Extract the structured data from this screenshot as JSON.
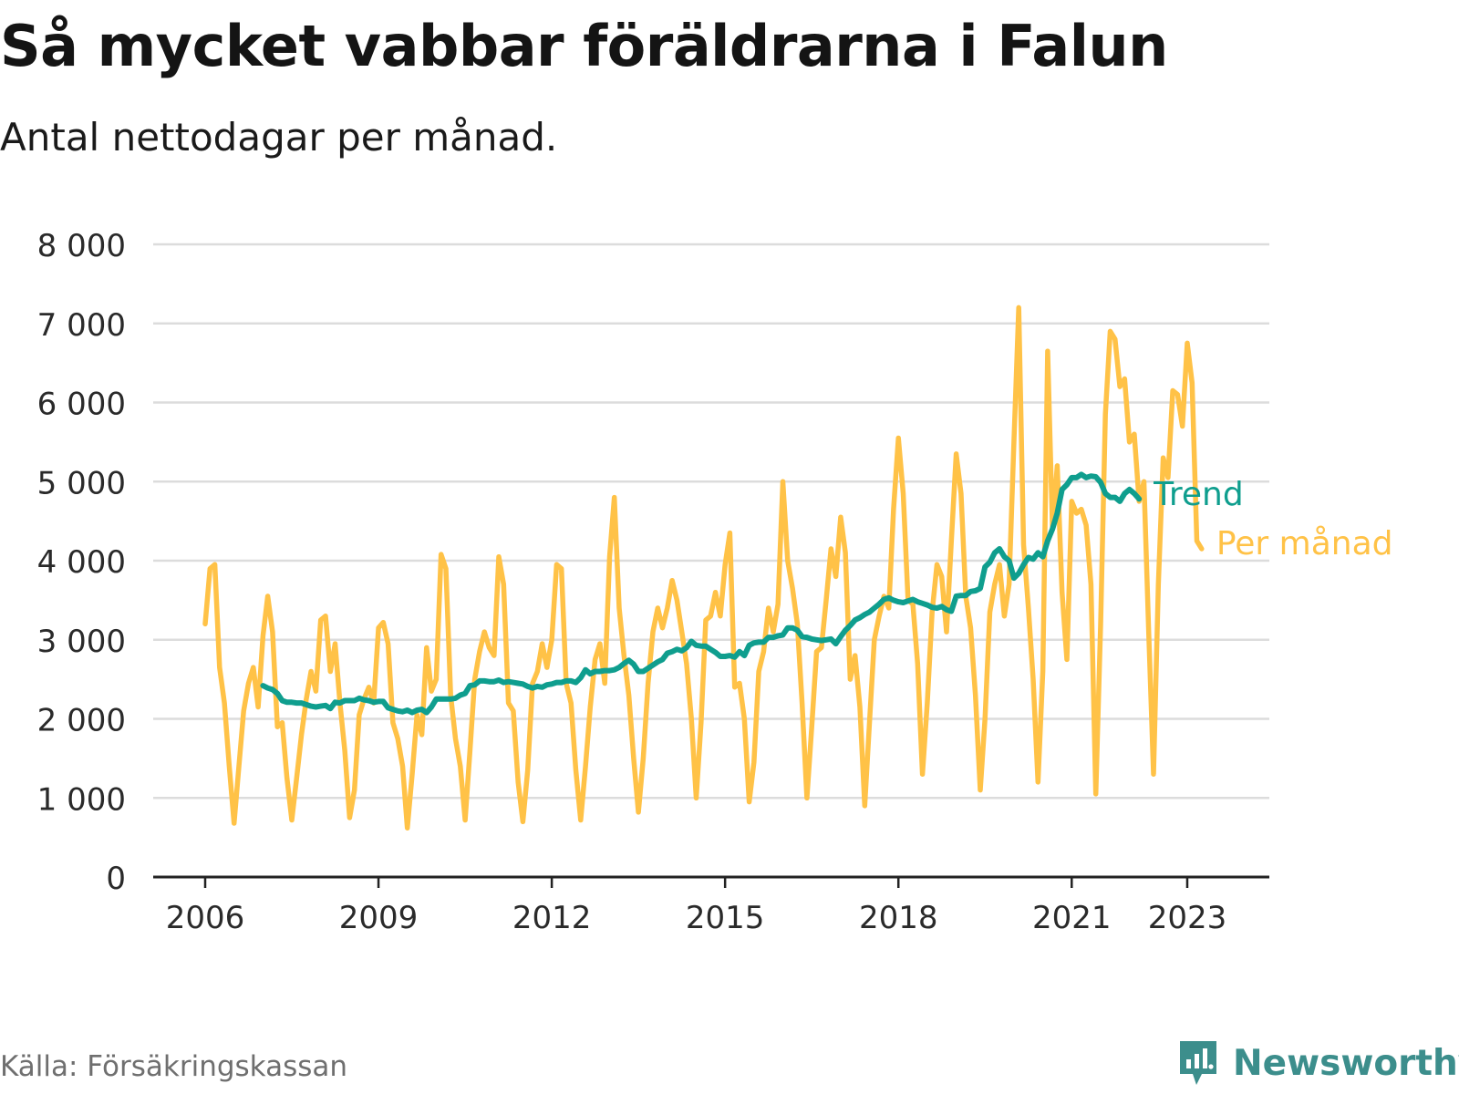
{
  "header": {
    "title": "Så mycket vabbar föräldrarna i Falun",
    "subtitle": "Antal nettodagar per månad."
  },
  "footer": {
    "source": "Källa: Försäkringskassan",
    "brand": "Newsworthy",
    "brand_color": "#3c8e8c"
  },
  "chart_data": {
    "type": "line",
    "ylim": [
      0,
      8000
    ],
    "xlim": [
      2006.0,
      2024.2
    ],
    "y_ticks": [
      0,
      1000,
      2000,
      3000,
      4000,
      5000,
      6000,
      7000,
      8000
    ],
    "y_tick_labels": [
      "0",
      "1 000",
      "2 000",
      "3 000",
      "4 000",
      "5 000",
      "6 000",
      "7 000",
      "8 000"
    ],
    "x_ticks": [
      2006,
      2009,
      2012,
      2015,
      2018,
      2021,
      2023
    ],
    "x_tick_labels": [
      "2006",
      "2009",
      "2012",
      "2015",
      "2018",
      "2021",
      "2023"
    ],
    "grid": true,
    "legend_placement": "right, at line ends",
    "series": [
      {
        "name": "Per månad",
        "color": "#ffc247",
        "start": "2006-01",
        "frequency": "monthly",
        "values": [
          3200,
          3900,
          3950,
          2650,
          2200,
          1400,
          680,
          1400,
          2100,
          2450,
          2650,
          2150,
          3050,
          3550,
          3100,
          1900,
          1950,
          1250,
          720,
          1250,
          1800,
          2250,
          2600,
          2350,
          3250,
          3300,
          2600,
          2950,
          2200,
          1600,
          750,
          1100,
          2050,
          2250,
          2400,
          2200,
          3150,
          3220,
          2950,
          1950,
          1750,
          1400,
          620,
          1300,
          2050,
          1800,
          2900,
          2350,
          2500,
          4080,
          3900,
          2300,
          1750,
          1400,
          720,
          1600,
          2500,
          2850,
          3100,
          2900,
          2800,
          4050,
          3700,
          2200,
          2100,
          1200,
          700,
          1350,
          2450,
          2600,
          2950,
          2650,
          3000,
          3950,
          3900,
          2450,
          2200,
          1350,
          720,
          1400,
          2150,
          2750,
          2950,
          2450,
          4050,
          4800,
          3400,
          2800,
          2300,
          1500,
          820,
          1500,
          2450,
          3100,
          3400,
          3150,
          3400,
          3750,
          3500,
          3100,
          2700,
          2000,
          1000,
          1950,
          3250,
          3300,
          3600,
          3300,
          3950,
          4350,
          2400,
          2450,
          2000,
          950,
          1450,
          2600,
          2850,
          3400,
          3100,
          3450,
          5000,
          4000,
          3650,
          3200,
          2200,
          1000,
          1900,
          2850,
          2900,
          3500,
          4150,
          3800,
          4550,
          4100,
          2500,
          2800,
          2150,
          900,
          1950,
          3000,
          3300,
          3550,
          3400,
          4650,
          5550,
          4850,
          3500,
          3450,
          2700,
          1300,
          2200,
          3350,
          3950,
          3800,
          3100,
          4250,
          5350,
          4850,
          3550,
          3150,
          2300,
          1100,
          2000,
          3350,
          3700,
          3950,
          3300,
          3700,
          5500,
          7200,
          4200,
          3400,
          2500,
          1200,
          2600,
          6650,
          4400,
          5200,
          3600,
          2750,
          4750,
          4600,
          4650,
          4450,
          3700,
          1050,
          3200,
          5850,
          6900,
          6800,
          6200,
          6300,
          5500,
          5600,
          4750,
          5000,
          3100,
          1300,
          3700,
          5300,
          5050,
          6150,
          6100,
          5700,
          6750,
          6250,
          4250,
          4150
        ]
      },
      {
        "name": "Trend",
        "color": "#0f9e8e",
        "start": "2007-01",
        "frequency": "monthly",
        "values": [
          2420,
          2390,
          2370,
          2320,
          2230,
          2210,
          2210,
          2200,
          2200,
          2180,
          2160,
          2150,
          2160,
          2170,
          2130,
          2210,
          2200,
          2230,
          2230,
          2230,
          2260,
          2240,
          2230,
          2210,
          2220,
          2220,
          2140,
          2120,
          2100,
          2090,
          2110,
          2080,
          2110,
          2120,
          2080,
          2150,
          2250,
          2250,
          2250,
          2250,
          2260,
          2300,
          2320,
          2420,
          2430,
          2480,
          2480,
          2470,
          2470,
          2490,
          2460,
          2470,
          2460,
          2450,
          2440,
          2410,
          2390,
          2410,
          2400,
          2430,
          2440,
          2460,
          2460,
          2480,
          2480,
          2460,
          2520,
          2620,
          2570,
          2600,
          2600,
          2610,
          2610,
          2620,
          2650,
          2700,
          2740,
          2690,
          2600,
          2600,
          2640,
          2680,
          2720,
          2750,
          2830,
          2850,
          2880,
          2860,
          2900,
          2980,
          2930,
          2920,
          2920,
          2880,
          2840,
          2790,
          2790,
          2800,
          2780,
          2850,
          2800,
          2930,
          2960,
          2970,
          2970,
          3030,
          3030,
          3050,
          3060,
          3150,
          3150,
          3120,
          3040,
          3030,
          3010,
          3000,
          2990,
          3000,
          3010,
          2950,
          3040,
          3120,
          3180,
          3250,
          3280,
          3320,
          3350,
          3400,
          3450,
          3510,
          3530,
          3500,
          3480,
          3470,
          3490,
          3510,
          3480,
          3460,
          3440,
          3410,
          3400,
          3420,
          3380,
          3360,
          3550,
          3560,
          3560,
          3610,
          3620,
          3650,
          3920,
          3980,
          4100,
          4150,
          4050,
          4000,
          3780,
          3840,
          3950,
          4040,
          4020,
          4100,
          4050,
          4250,
          4400,
          4600,
          4900,
          4960,
          5050,
          5050,
          5090,
          5050,
          5070,
          5060,
          4990,
          4850,
          4800,
          4800,
          4750,
          4850,
          4900,
          4850,
          4780
        ]
      }
    ]
  }
}
